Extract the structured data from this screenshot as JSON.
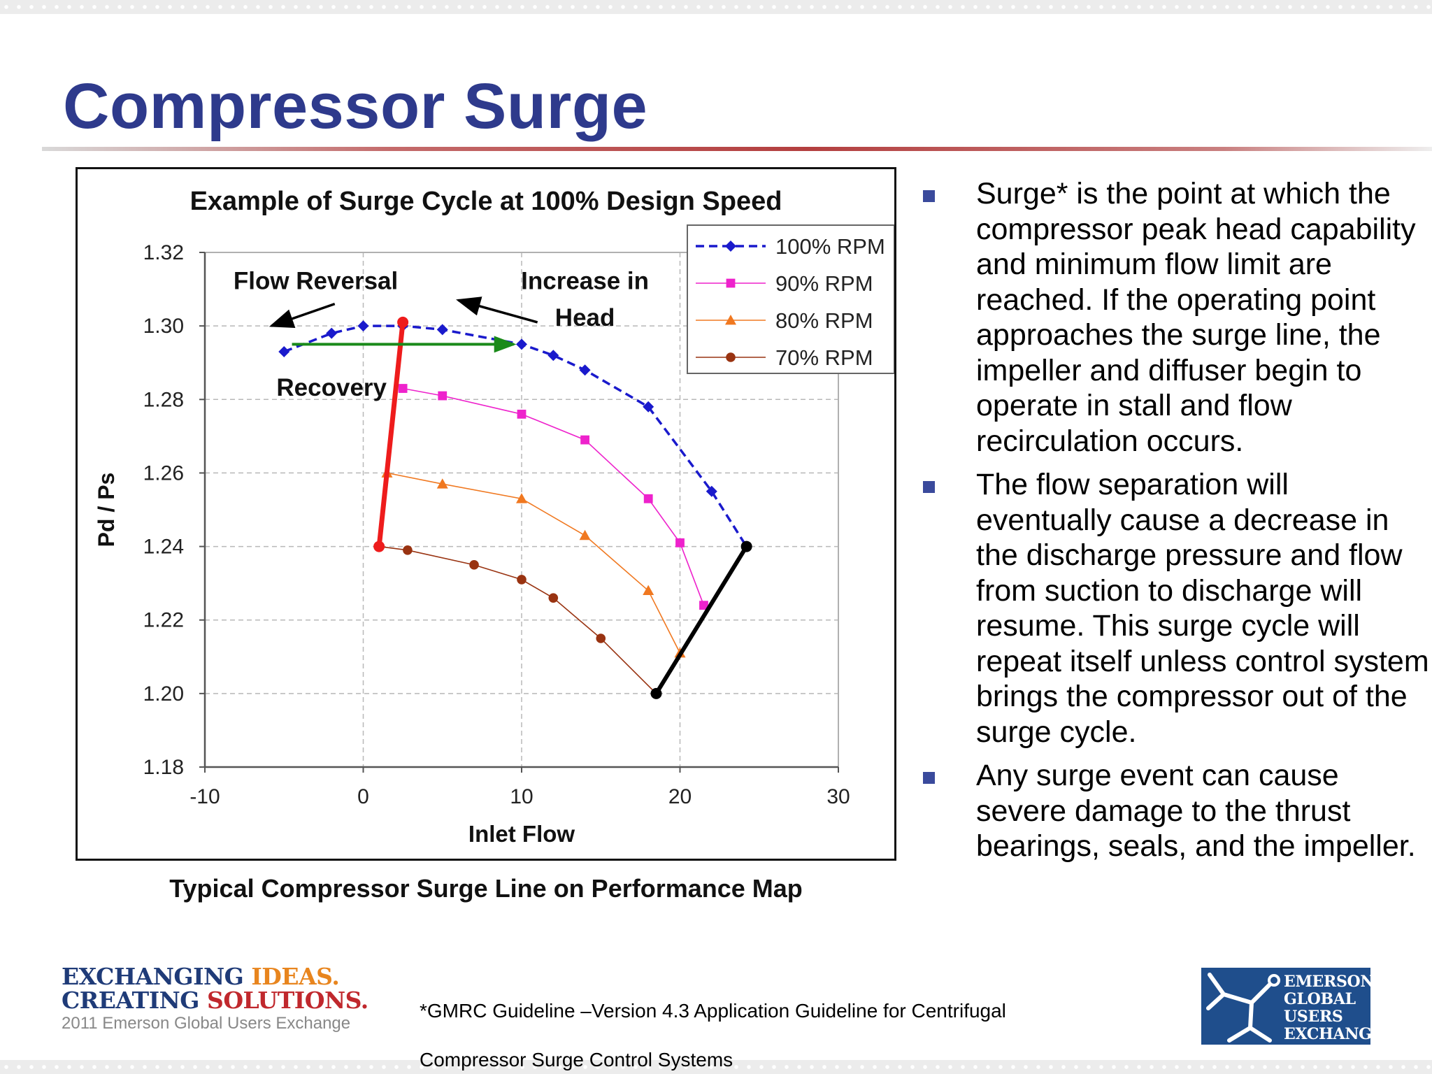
{
  "slide": {
    "title": "Compressor Surge",
    "caption": "Typical Compressor Surge Line on Performance Map",
    "bullets": [
      "Surge* is the point at which the compressor peak head capability and minimum flow limit are reached. If the operating point approaches the surge line, the impeller and diffuser begin to operate in stall and flow recirculation occurs.",
      "The flow separation will eventually cause a decrease in the discharge pressure and flow from suction to discharge will resume. This surge cycle will repeat itself unless control system brings the compressor out of the surge cycle.",
      "Any surge event can cause severe damage to the thrust bearings, seals, and the impeller."
    ],
    "footnote_line1": "*GMRC Guideline –Version 4.3 Application Guideline for Centrifugal",
    "footnote_line2": "Compressor Surge Control Systems",
    "brand": {
      "line1_a": "EXCHANGING",
      "line1_b": "IDEAS.",
      "line2_a": "CREATING",
      "line2_b": "SOLUTIONS.",
      "subline": "2011 Emerson Global Users Exchange"
    },
    "logo_lines": [
      "EMERSON",
      "GLOBAL",
      "USERS",
      "EXCHANGE"
    ]
  },
  "chart_data": {
    "type": "line",
    "title": "Example of Surge Cycle at 100% Design Speed",
    "xlabel": "Inlet Flow",
    "ylabel": "Pd / Ps",
    "xlim": [
      -10,
      30
    ],
    "ylim": [
      1.18,
      1.32
    ],
    "xticks": [
      -10,
      0,
      10,
      20,
      30
    ],
    "yticks": [
      1.18,
      1.2,
      1.22,
      1.24,
      1.26,
      1.28,
      1.3,
      1.32
    ],
    "grid": true,
    "legend_position": "top-right",
    "colors": {
      "100": "#1a1acc",
      "90": "#ee22cc",
      "80": "#f07820",
      "70": "#993311",
      "surge_line": "#ee1c1c",
      "stonewall": "#000000",
      "recovery": "#1a8a1a"
    },
    "series": [
      {
        "name": "100% RPM",
        "marker": "diamond",
        "dash": true,
        "points": [
          [
            -5,
            1.293
          ],
          [
            -2,
            1.298
          ],
          [
            0,
            1.3
          ],
          [
            2.5,
            1.3
          ],
          [
            5,
            1.299
          ],
          [
            10,
            1.295
          ],
          [
            12,
            1.292
          ],
          [
            14,
            1.288
          ],
          [
            18,
            1.278
          ],
          [
            22,
            1.255
          ],
          [
            24.2,
            1.24
          ]
        ]
      },
      {
        "name": "90% RPM",
        "marker": "square",
        "dash": false,
        "points": [
          [
            2.5,
            1.283
          ],
          [
            5,
            1.281
          ],
          [
            10,
            1.276
          ],
          [
            14,
            1.269
          ],
          [
            18,
            1.253
          ],
          [
            20,
            1.241
          ],
          [
            21.5,
            1.224
          ]
        ]
      },
      {
        "name": "80% RPM",
        "marker": "triangle",
        "dash": false,
        "points": [
          [
            1.5,
            1.26
          ],
          [
            5,
            1.257
          ],
          [
            10,
            1.253
          ],
          [
            14,
            1.243
          ],
          [
            18,
            1.228
          ],
          [
            20,
            1.211
          ]
        ]
      },
      {
        "name": "70% RPM",
        "marker": "circle",
        "dash": false,
        "points": [
          [
            1,
            1.24
          ],
          [
            2.8,
            1.239
          ],
          [
            7,
            1.235
          ],
          [
            10,
            1.231
          ],
          [
            12,
            1.226
          ],
          [
            15,
            1.215
          ],
          [
            18.5,
            1.2
          ]
        ]
      }
    ],
    "surge_line": [
      [
        2.5,
        1.301
      ],
      [
        1,
        1.24
      ]
    ],
    "stonewall_line": [
      [
        18.5,
        1.2
      ],
      [
        24.2,
        1.24
      ]
    ],
    "recovery_arrow": [
      [
        -4.5,
        1.295
      ],
      [
        9.5,
        1.295
      ]
    ],
    "annotations": [
      {
        "id": "flow-reversal",
        "text": "Flow Reversal",
        "x": -3,
        "y": 1.31
      },
      {
        "id": "increase-in-head-1",
        "text": "Increase in",
        "x": 14,
        "y": 1.31
      },
      {
        "id": "increase-in-head-2",
        "text": "Head",
        "x": 14,
        "y": 1.3
      },
      {
        "id": "recovery",
        "text": "Recovery",
        "x": -2,
        "y": 1.281
      }
    ],
    "arrows": [
      {
        "id": "flow-reversal-arrow",
        "from": [
          -1.8,
          1.306
        ],
        "to": [
          -5.8,
          1.3
        ]
      },
      {
        "id": "increase-head-arrow",
        "from": [
          11,
          1.301
        ],
        "to": [
          6,
          1.307
        ]
      }
    ]
  }
}
